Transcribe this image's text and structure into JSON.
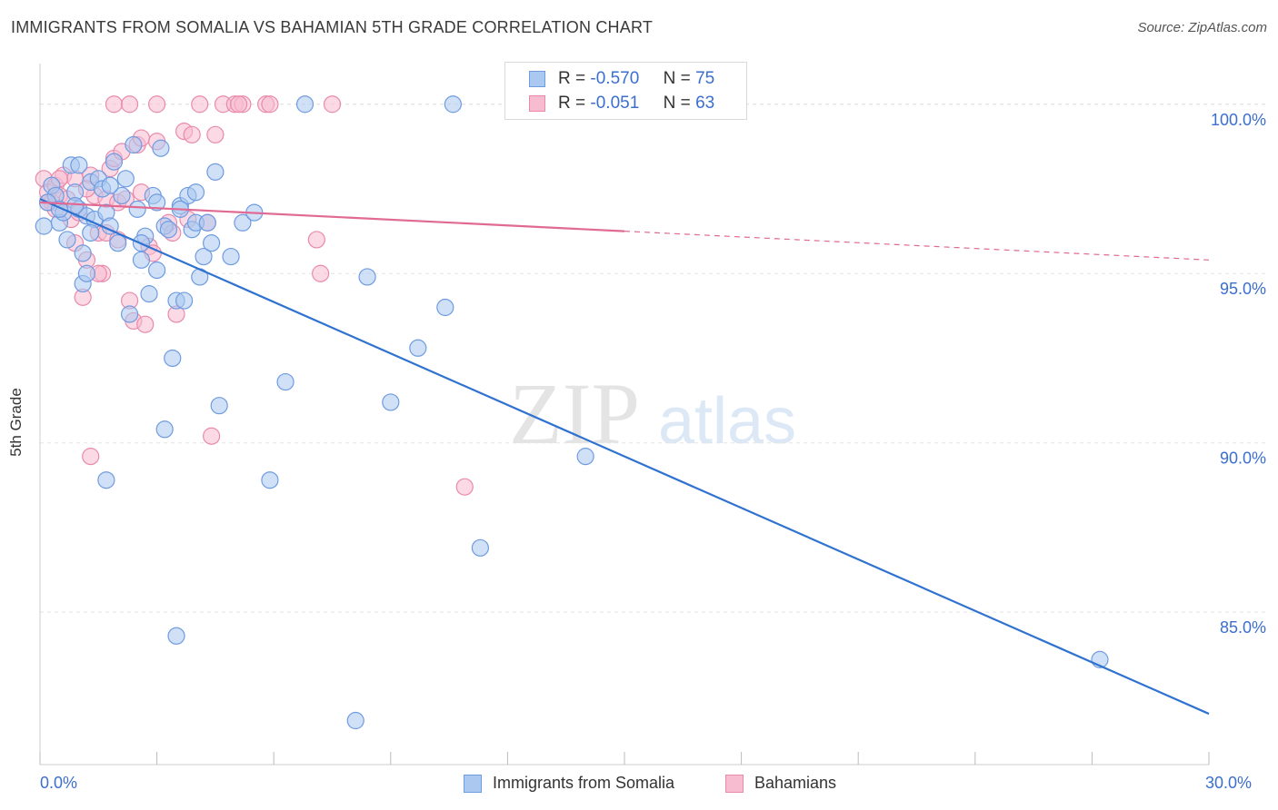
{
  "header": {
    "title": "IMMIGRANTS FROM SOMALIA VS BAHAMIAN 5TH GRADE CORRELATION CHART",
    "source": "Source: ZipAtlas.com"
  },
  "legend": {
    "rows": [
      {
        "r_label": "R =",
        "r_value": "-0.570",
        "n_label": "N =",
        "n_value": "75"
      },
      {
        "r_label": "R =",
        "r_value": "-0.051",
        "n_label": "N =",
        "n_value": "63"
      }
    ]
  },
  "bottom_legend": {
    "items": [
      "Immigrants from Somalia",
      "Bahamians"
    ]
  },
  "colors": {
    "blue_fill": "#aac8f0",
    "blue_stroke": "#6f9be0",
    "blue_line": "#2f72d0",
    "pink_fill": "#f7bcd0",
    "pink_stroke": "#e98aab",
    "pink_line": "#e06a92",
    "tick_text": "#3b6fcf",
    "grid": "#e3e3e3"
  },
  "watermark": {
    "zip": "ZIP",
    "atlas": "atlas"
  },
  "chart_data": {
    "type": "scatter",
    "title": "IMMIGRANTS FROM SOMALIA VS BAHAMIAN 5TH GRADE CORRELATION CHART",
    "xlabel": "",
    "ylabel": "5th Grade",
    "xlim": [
      0,
      30
    ],
    "ylim": [
      80.5,
      101.2
    ],
    "x_tick_labels": [
      "0.0%",
      "30.0%"
    ],
    "y_ticks": [
      85,
      90,
      95,
      100
    ],
    "y_tick_labels": [
      "85.0%",
      "90.0%",
      "95.0%",
      "100.0%"
    ],
    "grid": true,
    "legend_position": "top-center",
    "series": [
      {
        "name": "Immigrants from Somalia",
        "r": -0.57,
        "n": 75,
        "trend": {
          "x": [
            0,
            30
          ],
          "y": [
            97.2,
            82.0
          ],
          "dashed_from": null
        },
        "points": [
          [
            0.1,
            96.4
          ],
          [
            0.3,
            97.6
          ],
          [
            0.4,
            97.3
          ],
          [
            0.5,
            96.5
          ],
          [
            0.6,
            96.8
          ],
          [
            0.7,
            96.0
          ],
          [
            0.8,
            98.2
          ],
          [
            0.9,
            97.4
          ],
          [
            1.0,
            96.9
          ],
          [
            1.1,
            95.6
          ],
          [
            1.2,
            96.7
          ],
          [
            1.3,
            97.7
          ],
          [
            1.4,
            96.6
          ],
          [
            1.5,
            97.8
          ],
          [
            1.6,
            97.5
          ],
          [
            1.7,
            96.8
          ],
          [
            1.8,
            96.4
          ],
          [
            1.9,
            98.3
          ],
          [
            2.0,
            95.9
          ],
          [
            2.1,
            97.3
          ],
          [
            2.2,
            97.8
          ],
          [
            2.3,
            93.8
          ],
          [
            2.4,
            98.8
          ],
          [
            2.5,
            96.9
          ],
          [
            2.6,
            95.4
          ],
          [
            2.7,
            96.1
          ],
          [
            2.8,
            94.4
          ],
          [
            2.9,
            97.3
          ],
          [
            3.0,
            95.1
          ],
          [
            3.1,
            98.7
          ],
          [
            3.2,
            96.4
          ],
          [
            3.3,
            96.3
          ],
          [
            3.4,
            92.5
          ],
          [
            3.5,
            94.2
          ],
          [
            3.6,
            97.0
          ],
          [
            3.7,
            94.2
          ],
          [
            3.8,
            97.3
          ],
          [
            3.9,
            96.3
          ],
          [
            4.0,
            96.5
          ],
          [
            4.1,
            94.9
          ],
          [
            4.2,
            95.5
          ],
          [
            4.3,
            96.5
          ],
          [
            4.4,
            95.9
          ],
          [
            4.5,
            98.0
          ],
          [
            4.6,
            91.1
          ],
          [
            4.9,
            95.5
          ],
          [
            5.2,
            96.5
          ],
          [
            5.5,
            96.8
          ],
          [
            6.3,
            91.8
          ],
          [
            6.8,
            100.0
          ],
          [
            8.1,
            81.8
          ],
          [
            8.4,
            94.9
          ],
          [
            9.0,
            91.2
          ],
          [
            9.7,
            92.8
          ],
          [
            10.4,
            94.0
          ],
          [
            10.6,
            100.0
          ],
          [
            11.3,
            86.9
          ],
          [
            14.0,
            89.6
          ],
          [
            27.2,
            83.6
          ],
          [
            1.7,
            88.9
          ],
          [
            3.2,
            90.4
          ],
          [
            5.9,
            88.9
          ],
          [
            3.5,
            84.3
          ],
          [
            1.1,
            94.7
          ],
          [
            1.2,
            95.0
          ],
          [
            0.9,
            97.0
          ],
          [
            1.3,
            96.2
          ],
          [
            1.8,
            97.6
          ],
          [
            2.6,
            95.9
          ],
          [
            3.0,
            97.1
          ],
          [
            3.6,
            96.9
          ],
          [
            4.0,
            97.4
          ],
          [
            0.2,
            97.1
          ],
          [
            0.5,
            96.9
          ],
          [
            1.0,
            98.2
          ]
        ]
      },
      {
        "name": "Bahamians",
        "r": -0.051,
        "n": 63,
        "trend": {
          "x": [
            0,
            30
          ],
          "y": [
            97.1,
            95.4
          ],
          "dashed_from": 15
        },
        "points": [
          [
            0.1,
            97.8
          ],
          [
            0.2,
            97.4
          ],
          [
            0.3,
            97.1
          ],
          [
            0.4,
            97.6
          ],
          [
            0.5,
            97.3
          ],
          [
            0.6,
            97.9
          ],
          [
            0.7,
            97.2
          ],
          [
            0.8,
            96.6
          ],
          [
            0.9,
            97.8
          ],
          [
            1.0,
            96.8
          ],
          [
            1.1,
            94.3
          ],
          [
            1.2,
            95.4
          ],
          [
            1.3,
            97.9
          ],
          [
            1.4,
            97.3
          ],
          [
            1.5,
            96.2
          ],
          [
            1.6,
            95.0
          ],
          [
            1.7,
            97.2
          ],
          [
            1.8,
            98.1
          ],
          [
            1.9,
            98.4
          ],
          [
            2.0,
            97.1
          ],
          [
            2.1,
            98.6
          ],
          [
            2.2,
            97.2
          ],
          [
            2.3,
            94.2
          ],
          [
            2.4,
            93.6
          ],
          [
            2.5,
            98.8
          ],
          [
            2.6,
            99.0
          ],
          [
            2.7,
            93.5
          ],
          [
            2.8,
            95.8
          ],
          [
            2.9,
            95.6
          ],
          [
            3.0,
            98.9
          ],
          [
            3.3,
            96.5
          ],
          [
            3.4,
            96.2
          ],
          [
            3.5,
            93.8
          ],
          [
            3.7,
            99.2
          ],
          [
            3.8,
            96.6
          ],
          [
            3.9,
            99.1
          ],
          [
            4.1,
            100.0
          ],
          [
            4.3,
            96.5
          ],
          [
            4.4,
            90.2
          ],
          [
            4.5,
            99.1
          ],
          [
            4.7,
            100.0
          ],
          [
            5.0,
            100.0
          ],
          [
            5.2,
            100.0
          ],
          [
            5.8,
            100.0
          ],
          [
            5.9,
            100.0
          ],
          [
            7.1,
            96.0
          ],
          [
            7.2,
            95.0
          ],
          [
            7.5,
            100.0
          ],
          [
            10.9,
            88.7
          ],
          [
            1.3,
            89.6
          ],
          [
            1.9,
            100.0
          ],
          [
            2.3,
            100.0
          ],
          [
            3.0,
            100.0
          ],
          [
            5.1,
            100.0
          ],
          [
            0.5,
            97.8
          ],
          [
            0.9,
            95.9
          ],
          [
            1.5,
            95.0
          ],
          [
            1.7,
            96.2
          ],
          [
            0.4,
            96.9
          ],
          [
            0.2,
            97.1
          ],
          [
            1.2,
            97.5
          ],
          [
            2.0,
            96.0
          ],
          [
            2.6,
            97.4
          ]
        ]
      }
    ]
  }
}
